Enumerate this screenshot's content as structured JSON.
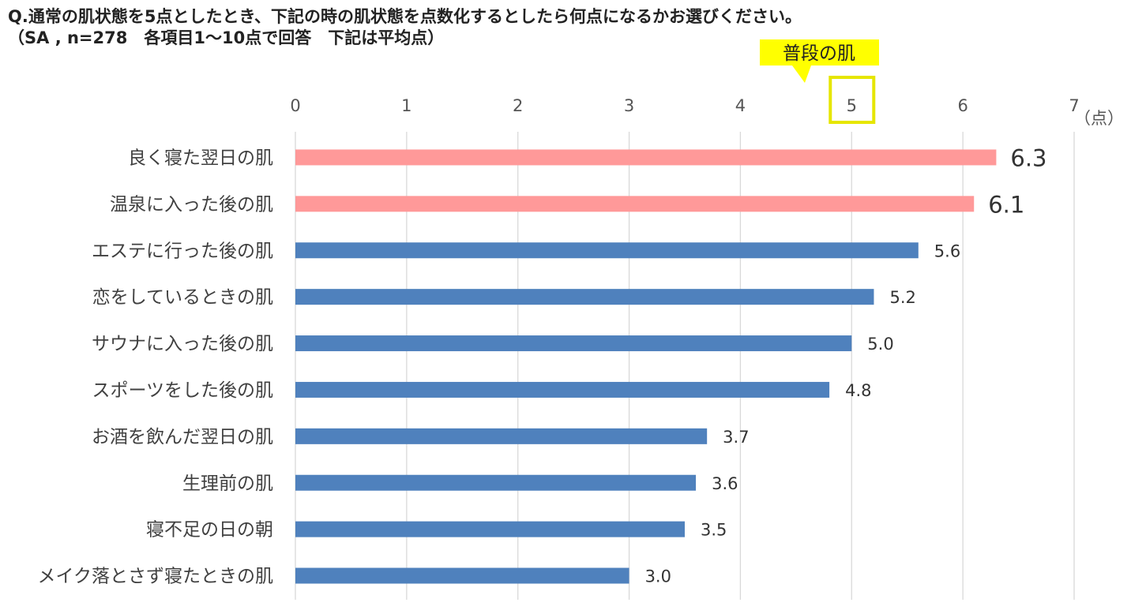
{
  "header": {
    "question": "Q.通常の肌状態を5点としたとき、下記の時の肌状態を点数化するとしたら何点になるかお選びください。",
    "sample_note": "（SA , n=278　各項目1～10点で回答　下記は平均点）"
  },
  "callout": {
    "label": "普段の肌",
    "highlight_tick": 5,
    "fill_color": "#FFFF00",
    "border_color": "#E6E600"
  },
  "unit_label": "（点）",
  "chart_data": {
    "type": "bar",
    "orientation": "horizontal",
    "xlim": [
      0,
      7
    ],
    "ticks": [
      0,
      1,
      2,
      3,
      4,
      5,
      6,
      7
    ],
    "grid": true,
    "colors": {
      "highlight": "#FF9999",
      "default": "#4F81BD"
    },
    "categories": [
      "良く寝た翌日の肌",
      "温泉に入った後の肌",
      "エステに行った後の肌",
      "恋をしているときの肌",
      "サウナに入った後の肌",
      "スポーツをした後の肌",
      "お酒を飲んだ翌日の肌",
      "生理前の肌",
      "寝不足の日の朝",
      "メイク落とさず寝たときの肌"
    ],
    "values": [
      6.3,
      6.1,
      5.6,
      5.2,
      5.0,
      4.8,
      3.7,
      3.6,
      3.5,
      3.0
    ],
    "value_labels": [
      "6.3",
      "6.1",
      "5.6",
      "5.2",
      "5.0",
      "4.8",
      "3.7",
      "3.6",
      "3.5",
      "3.0"
    ],
    "highlighted": [
      true,
      true,
      false,
      false,
      false,
      false,
      false,
      false,
      false,
      false
    ]
  }
}
